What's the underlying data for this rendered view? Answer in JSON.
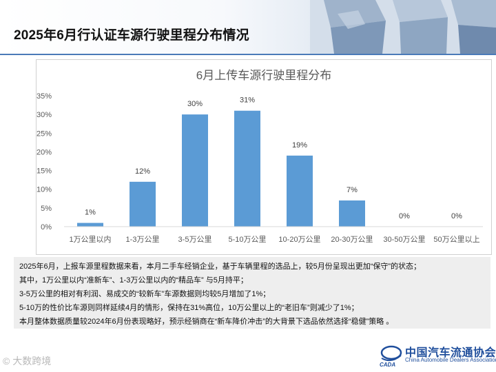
{
  "page": {
    "title": "2025年6月行认证车源行驶里程分布情况",
    "accent_color": "#4a7ab8"
  },
  "chart_data": {
    "type": "bar",
    "title": "6月上传车源行驶里程分布",
    "categories": [
      "1万公里以内",
      "1-3万公里",
      "3-5万公里",
      "5-10万公里",
      "10-20万公里",
      "20-30万公里",
      "30-50万公里",
      "50万公里以上"
    ],
    "values": [
      1,
      12,
      30,
      31,
      19,
      7,
      0,
      0
    ],
    "value_labels": [
      "1%",
      "12%",
      "30%",
      "31%",
      "19%",
      "7%",
      "0%",
      "0%"
    ],
    "yticks": [
      "0%",
      "5%",
      "10%",
      "15%",
      "20%",
      "25%",
      "30%",
      "35%"
    ],
    "ylim": [
      0,
      35
    ],
    "ytick_step": 5,
    "grid": false,
    "legend": "none",
    "bar_color": "#5b9bd5"
  },
  "notes": [
    "2025年6月，上报车源里程数据来看，本月二手车经销企业，基于车辆里程的选品上，较5月份呈现出更加“保守”的状态；",
    "其中，1万公里以内“准新车”、1-3万公里以内的“精品车” 与5月持平；",
    "3-5万公里的相对有利润、易成交的“较新车”车源数据则均较5月增加了1%；",
    "5-10万的性价比车源则同样延续4月的情形，保持在31%高位，10万公里以上的“老旧车”则减少了1%；",
    "本月整体数据质量较2024年6月份表现略好，预示经销商在“新车降价冲击”的大背景下选品依然选择“稳健”策略 。"
  ],
  "footer": {
    "logo_cn": "中国汽车流通协会",
    "logo_en": "China Automobile Dealers Association",
    "logo_abbr": "CADA",
    "watermark": "大数跨境"
  }
}
